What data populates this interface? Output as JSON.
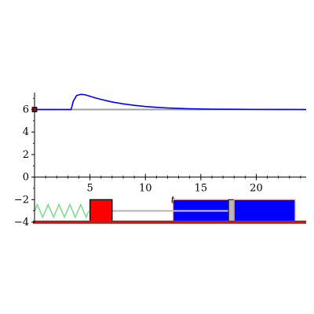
{
  "chart_data": {
    "type": "line",
    "xlabel": "t",
    "ylabel": "",
    "xlim": [
      0,
      24.5
    ],
    "ylim": [
      -4,
      7.5
    ],
    "x_ticks": [
      5,
      10,
      15,
      20
    ],
    "y_ticks": [
      -4,
      -2,
      0,
      2,
      4,
      6
    ],
    "x_tick_labels": [
      "5",
      "10",
      "15",
      "20"
    ],
    "y_tick_labels": [
      "−4",
      "−2",
      "0",
      "2",
      "4",
      "6"
    ],
    "grid": false,
    "series": [
      {
        "color": "#0000ff",
        "x": [
          0,
          3.3,
          3.5,
          3.8,
          4.2,
          4.6,
          5.0,
          5.5,
          6.0,
          6.5,
          7.0,
          8.0,
          9.0,
          10.0,
          11.0,
          12.0,
          13.0,
          14.0,
          15.0,
          16.0,
          18.0,
          20.0,
          22.0,
          24.5
        ],
        "y": [
          6.0,
          6.0,
          6.75,
          7.25,
          7.35,
          7.3,
          7.18,
          7.03,
          6.9,
          6.78,
          6.67,
          6.5,
          6.37,
          6.27,
          6.2,
          6.14,
          6.1,
          6.07,
          6.05,
          6.035,
          6.02,
          6.01,
          6.005,
          6.0
        ]
      },
      {
        "color": "#a0a0a0",
        "x": [
          0,
          24.5
        ],
        "y": [
          6.0,
          6.0
        ]
      }
    ],
    "scene": {
      "ground": {
        "y": -4.0,
        "color": "#b22222"
      },
      "spring": {
        "x_start": 0,
        "x_end": 4.9,
        "y": -3.0,
        "color": "#7fdc8f"
      },
      "mass": {
        "x_start": 5.0,
        "x_end": 7.0,
        "y_start": -4.0,
        "y_end": -2.0,
        "color": "#ff0000"
      },
      "rod": {
        "x_start": 7.0,
        "x_end": 12.5,
        "y": -3.0,
        "color": "#b4b4b4"
      },
      "damper_left": {
        "x_start": 12.5,
        "x_end": 17.5,
        "y_start": -4.0,
        "y_end": -2.0,
        "color": "#0000ff"
      },
      "damper_right": {
        "x_start": 18.0,
        "x_end": 23.5,
        "y_start": -4.0,
        "y_end": -2.0,
        "color": "#0000ff"
      }
    }
  }
}
